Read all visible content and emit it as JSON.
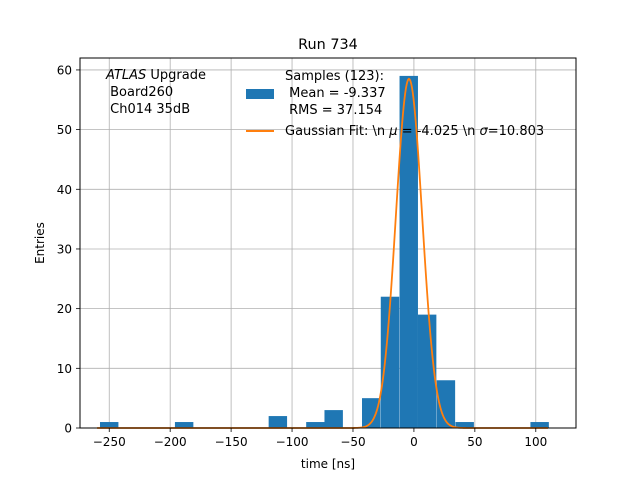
{
  "chart_data": {
    "type": "bar",
    "title": "Run 734",
    "xlabel": "time [ns]",
    "ylabel": "Entries",
    "xlim": [
      -274,
      133
    ],
    "ylim": [
      0,
      62
    ],
    "grid": true,
    "xticks": [
      -250,
      -200,
      -150,
      -100,
      -50,
      0,
      50,
      100
    ],
    "xtick_labels": [
      "−250",
      "−200",
      "−150",
      "−100",
      "−50",
      "0",
      "50",
      "100"
    ],
    "yticks": [
      0,
      10,
      20,
      30,
      40,
      50,
      60
    ],
    "ytick_labels": [
      "0",
      "10",
      "20",
      "30",
      "40",
      "50",
      "60"
    ],
    "histogram": {
      "bin_width": 15.12,
      "color": "#1f77b4",
      "bins": [
        {
          "left": -257.6,
          "count": 1
        },
        {
          "left": -196.1,
          "count": 1
        },
        {
          "left": -119.2,
          "count": 2
        },
        {
          "left": -88.4,
          "count": 1
        },
        {
          "left": -73.4,
          "count": 3
        },
        {
          "left": -42.6,
          "count": 5
        },
        {
          "left": -27.2,
          "count": 22
        },
        {
          "left": -11.8,
          "count": 59
        },
        {
          "left": 3.3,
          "count": 19
        },
        {
          "left": 18.7,
          "count": 8
        },
        {
          "left": 34.1,
          "count": 1
        },
        {
          "left": 95.6,
          "count": 1
        }
      ]
    },
    "gaussian_fit": {
      "mu": -4.025,
      "sigma": 10.803,
      "amplitude": 58.5,
      "color": "#ff7f0e"
    },
    "annotation": {
      "italic": "ATLAS",
      "line1_rest": " Upgrade",
      "line2": " Board260",
      "line3": " Ch014 35dB"
    },
    "legend": {
      "location": "top-right",
      "hist_line1": "Samples (123):",
      "hist_line2": " Mean = -9.337",
      "hist_line3": " RMS = 37.154",
      "fit_pre": "Gaussian Fit: \\n ",
      "fit_mu": "μ",
      "fit_mid": " = -4.025 \\n ",
      "fit_sigma": "σ",
      "fit_post": "=10.803"
    }
  }
}
